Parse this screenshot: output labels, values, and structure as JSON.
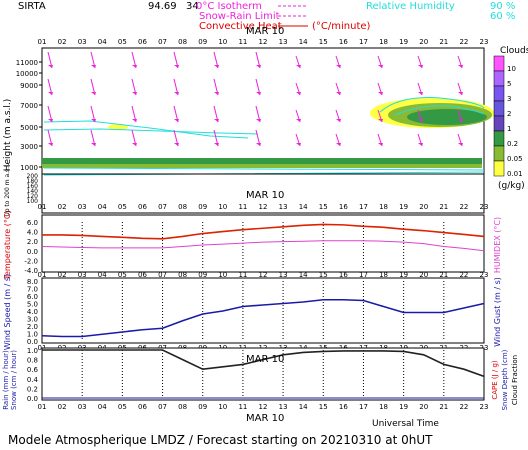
{
  "header": {
    "site": "SIRTA",
    "coords": "94.69",
    "coords_suffix": "34",
    "isotherm": "0°C Isotherm",
    "snow_rain": "Snow-Rain Limit",
    "convective": "Convective Heat",
    "convective_unit": "(°C/minute)",
    "rh_label": "Relative Humidity",
    "rh_90": "90 %",
    "rh_60": "60 %"
  },
  "hours": [
    "01",
    "02",
    "03",
    "04",
    "05",
    "06",
    "07",
    "08",
    "09",
    "10",
    "11",
    "12",
    "13",
    "14",
    "15",
    "16",
    "17",
    "18",
    "19",
    "20",
    "21",
    "22",
    "23"
  ],
  "date_label": "MAR 10",
  "colors": {
    "temperature": "#dd2200",
    "dewpoint": "#dd44cc",
    "wind": "#1a1aaa",
    "cloud_fraction": "#222222",
    "wind_arrow": "#ee22dd",
    "isotherm": "#22dddd",
    "ylabel_red": "#dd0000",
    "ylabel_blue": "#1a1aaa"
  },
  "panel_height": {
    "ylabel": "Height (m a.s.l.)",
    "ylabel_low": "Up to 200 m a.s.l.",
    "ticks_upper": [
      "11000",
      "10000",
      "9000",
      "7000",
      "5000",
      "3000",
      "1000"
    ],
    "ticks_lower": [
      "200",
      "180",
      "160",
      "140",
      "120",
      "100"
    ],
    "cloud_legend_title": "Clouds",
    "cloud_legend_unit": "(g/kg)",
    "cloud_levels": [
      "10",
      "5",
      "3",
      "2",
      "1",
      "0.2",
      "0.05",
      "0.01"
    ],
    "cloud_colors": [
      "#ff55ff",
      "#aa66ff",
      "#7755ee",
      "#6655dd",
      "#6644bb",
      "#339944",
      "#88bb33",
      "#ffff44"
    ]
  },
  "panel_temp": {
    "ylabel": "Temperature (°C)",
    "ylabel_right": "HUMIDEX (°C)",
    "ticks": [
      "6.0",
      "4.0",
      "2.0",
      "0.0",
      "-2.0",
      "-4.0"
    ]
  },
  "panel_wind": {
    "ylabel": "Wind Speed (m / s)",
    "ylabel_right": "Wind Gust (m / s)",
    "ticks": [
      "8.0",
      "7.0",
      "6.0",
      "5.0",
      "4.0",
      "3.0",
      "2.0",
      "1.0",
      "0.0"
    ]
  },
  "panel_rain": {
    "ylabel": "Rain (mm / hour)",
    "ylabel2": "Snow (cm / hour)",
    "ylabel_right": "CAPE (J / g)",
    "ylabel_right2": "Snow Depth (cm)",
    "ylabel_right3": "Cloud Fraction",
    "ticks": [
      "1.0",
      "0.8",
      "0.6",
      "0.4",
      "0.2",
      "0.0"
    ]
  },
  "xaxis_label": "Universal Time",
  "footer": "Modele Atmospherique LMDZ / Forecast starting on 20210310 at 0hUT",
  "chart_data": [
    {
      "type": "line",
      "title": "",
      "xlabel": "",
      "ylabel": "Temperature (°C)",
      "ylim": [
        -4,
        6
      ],
      "x": [
        "01",
        "02",
        "03",
        "04",
        "05",
        "06",
        "07",
        "08",
        "09",
        "10",
        "11",
        "12",
        "13",
        "14",
        "15",
        "16",
        "17",
        "18",
        "19",
        "20",
        "21",
        "22",
        "23"
      ],
      "series": [
        {
          "values": [
            3.3,
            3.3,
            3.2,
            3.0,
            2.8,
            2.6,
            2.5,
            3.0,
            3.6,
            4.0,
            4.4,
            4.7,
            5.0,
            5.3,
            5.5,
            5.4,
            5.1,
            4.9,
            4.5,
            4.2,
            3.8,
            3.4,
            3.0
          ]
        },
        {
          "values": [
            0.9,
            0.8,
            0.7,
            0.6,
            0.6,
            0.6,
            0.6,
            0.9,
            1.2,
            1.4,
            1.6,
            1.8,
            1.9,
            2.0,
            2.1,
            2.1,
            2.1,
            2.0,
            1.8,
            1.5,
            0.9,
            0.5,
            0.0
          ]
        }
      ]
    },
    {
      "type": "line",
      "title": "",
      "xlabel": "",
      "ylabel": "Wind Speed (m / s)",
      "ylim": [
        0,
        8
      ],
      "x": [
        "01",
        "02",
        "03",
        "04",
        "05",
        "06",
        "07",
        "08",
        "09",
        "10",
        "11",
        "12",
        "13",
        "14",
        "15",
        "16",
        "17",
        "18",
        "19",
        "20",
        "21",
        "22",
        "23"
      ],
      "series": [
        {
          "values": [
            0.7,
            0.6,
            0.6,
            0.9,
            1.2,
            1.5,
            1.7,
            2.7,
            3.6,
            4.0,
            4.6,
            4.8,
            5.0,
            5.2,
            5.5,
            5.5,
            5.4,
            4.6,
            3.8,
            3.8,
            3.8,
            4.4,
            5.0
          ]
        }
      ]
    },
    {
      "type": "line",
      "title": "",
      "xlabel": "Universal Time",
      "ylabel": "Rain (mm / hour)",
      "ylim": [
        0,
        1
      ],
      "x": [
        "01",
        "02",
        "03",
        "04",
        "05",
        "06",
        "07",
        "08",
        "09",
        "10",
        "11",
        "12",
        "13",
        "14",
        "15",
        "16",
        "17",
        "18",
        "19",
        "20",
        "21",
        "22",
        "23"
      ],
      "series": [
        {
          "values": [
            1,
            1,
            1,
            1,
            1,
            1,
            1,
            0.8,
            0.6,
            0.65,
            0.7,
            0.8,
            0.9,
            0.95,
            0.97,
            0.98,
            0.98,
            0.98,
            0.97,
            0.9,
            0.7,
            0.6,
            0.45
          ]
        },
        {
          "values": [
            0,
            0,
            0,
            0,
            0,
            0,
            0,
            0,
            0,
            0,
            0,
            0,
            0,
            0,
            0,
            0,
            0,
            0,
            0,
            0,
            0,
            0,
            0
          ]
        }
      ]
    }
  ]
}
